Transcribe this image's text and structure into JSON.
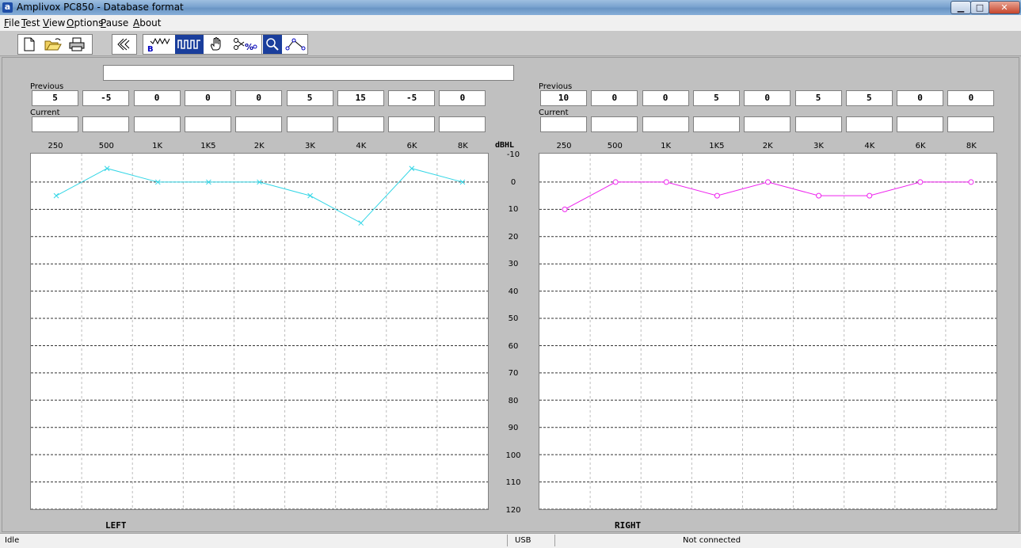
{
  "window": {
    "title": "Amplivox PC850 - Database format",
    "icon": "a"
  },
  "menu": [
    {
      "label": "File",
      "u": "F",
      "rest": "ile"
    },
    {
      "label": "Test",
      "u": "T",
      "rest": "est"
    },
    {
      "label": "View",
      "u": "V",
      "rest": "iew"
    },
    {
      "label": "Options",
      "u": "O",
      "rest": "ptions"
    },
    {
      "label": "Pause",
      "u": "P",
      "rest": "ause"
    },
    {
      "label": "About",
      "u": "A",
      "rest": "bout"
    }
  ],
  "toolbar": {
    "icons": [
      "new-document-icon",
      "open-folder-icon",
      "printer-icon",
      "ear-sound-icon",
      "bone-conduction-icon",
      "masking-icon",
      "hand-icon",
      "scissors-icon",
      "magnifier-icon",
      "connect-points-icon"
    ]
  },
  "patient": {
    "name_value": ""
  },
  "labels": {
    "previous": "Previous",
    "current": "Current",
    "unit": "dBHL",
    "left": "LEFT",
    "right": "RIGHT"
  },
  "frequencies": [
    "250",
    "500",
    "1K",
    "1K5",
    "2K",
    "3K",
    "4K",
    "6K",
    "8K"
  ],
  "db_ticks": [
    "-10",
    "0",
    "10",
    "20",
    "30",
    "40",
    "50",
    "60",
    "70",
    "80",
    "90",
    "100",
    "110",
    "120"
  ],
  "left": {
    "previous": [
      "5",
      "-5",
      "0",
      "0",
      "0",
      "5",
      "15",
      "-5",
      "0"
    ],
    "current": [
      "",
      "",
      "",
      "",
      "",
      "",
      "",
      "",
      ""
    ]
  },
  "right": {
    "previous": [
      "10",
      "0",
      "0",
      "5",
      "0",
      "5",
      "5",
      "0",
      "0"
    ],
    "current": [
      "",
      "",
      "",
      "",
      "",
      "",
      "",
      "",
      ""
    ]
  },
  "status": {
    "state": "Idle",
    "interface": "USB",
    "connection": "Not connected"
  },
  "chart_data": [
    {
      "type": "line",
      "name": "left-audiogram",
      "categories": [
        "250",
        "500",
        "1K",
        "1K5",
        "2K",
        "3K",
        "4K",
        "6K",
        "8K"
      ],
      "series": [
        {
          "name": "LEFT",
          "values": [
            5,
            -5,
            0,
            0,
            0,
            5,
            15,
            -5,
            0
          ],
          "color": "#33d6e6",
          "marker": "x"
        }
      ],
      "ylabel": "dBHL",
      "ylim": [
        -10,
        120
      ],
      "y_inverted": true,
      "grid": true
    },
    {
      "type": "line",
      "name": "right-audiogram",
      "categories": [
        "250",
        "500",
        "1K",
        "1K5",
        "2K",
        "3K",
        "4K",
        "6K",
        "8K"
      ],
      "series": [
        {
          "name": "RIGHT",
          "values": [
            10,
            0,
            0,
            5,
            0,
            5,
            5,
            0,
            0
          ],
          "color": "#ee22ee",
          "marker": "o"
        }
      ],
      "ylabel": "dBHL",
      "ylim": [
        -10,
        120
      ],
      "y_inverted": true,
      "grid": true
    }
  ]
}
